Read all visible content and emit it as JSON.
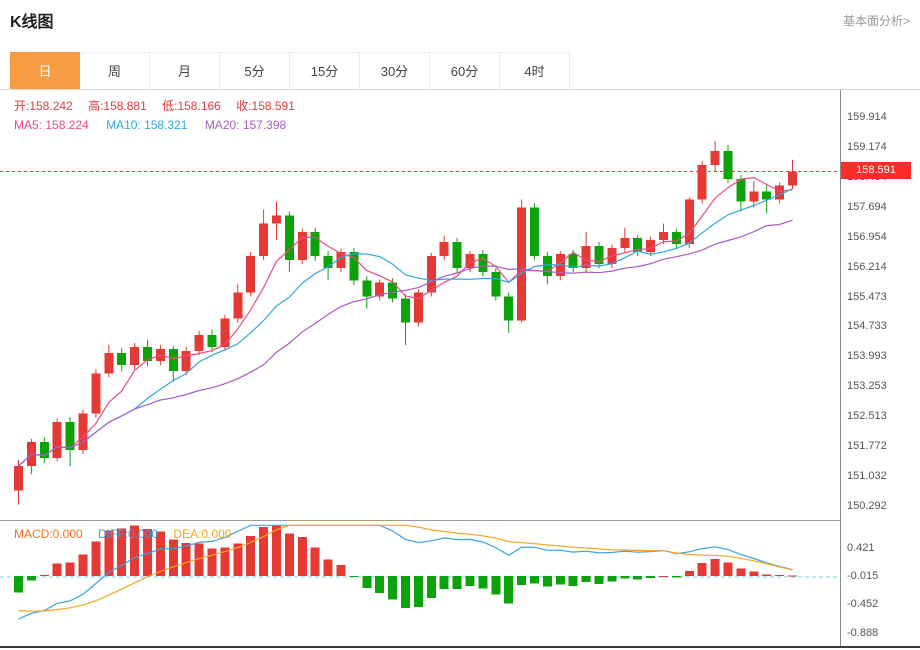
{
  "header": {
    "title": "K线图",
    "link": "基本面分析>"
  },
  "tabs": {
    "items": [
      "日",
      "周",
      "月",
      "5分",
      "15分",
      "30分",
      "60分",
      "4时"
    ],
    "selected": "日",
    "selected_index": 0
  },
  "info": {
    "open": "开:158.242",
    "high": "高:158.881",
    "low": "低:158.166",
    "close": "收:158.591",
    "ma5": "MA5: 158.224",
    "ma10": "MA10: 158.321",
    "ma20": "MA20: 157.398"
  },
  "macd_info": {
    "macd": "MACD:0.000",
    "diff": "DIFF:0.000",
    "dea": "DEA:0.000"
  },
  "price_marker": "158.591",
  "chart_data": {
    "type": "candlestick",
    "title": "K线图",
    "timeframe": "日",
    "indicator": "MACD",
    "latest": {
      "open": 158.242,
      "high": 158.881,
      "low": 158.166,
      "close": 158.591,
      "ma5": 158.224,
      "ma10": 158.321,
      "ma20": 157.398,
      "macd": 0.0,
      "diff": 0.0,
      "dea": 0.0
    },
    "current_price": 158.591,
    "y_range": [
      150.292,
      159.914
    ],
    "y_ticks": [
      159.914,
      159.174,
      158.434,
      157.694,
      156.954,
      156.214,
      155.473,
      154.733,
      153.993,
      153.253,
      152.513,
      151.772,
      151.032,
      150.292
    ],
    "macd_ticks": [
      0.421,
      -0.015,
      -0.452,
      -0.888
    ],
    "ma_periods": [
      5,
      10,
      20
    ],
    "ohlc": [
      [
        150.7,
        151.45,
        150.35,
        151.3
      ],
      [
        151.3,
        151.98,
        151.1,
        151.9
      ],
      [
        151.9,
        152.02,
        151.38,
        151.5
      ],
      [
        151.5,
        152.48,
        151.42,
        152.4
      ],
      [
        152.4,
        152.52,
        151.3,
        151.7
      ],
      [
        151.7,
        152.7,
        151.6,
        152.6
      ],
      [
        152.6,
        153.7,
        152.5,
        153.6
      ],
      [
        153.6,
        154.3,
        153.5,
        154.1
      ],
      [
        154.1,
        154.22,
        153.65,
        153.8
      ],
      [
        153.8,
        154.35,
        153.7,
        154.25
      ],
      [
        154.25,
        154.42,
        153.78,
        153.9
      ],
      [
        153.9,
        154.3,
        153.8,
        154.2
      ],
      [
        154.2,
        154.28,
        153.4,
        153.65
      ],
      [
        153.65,
        154.25,
        153.55,
        154.15
      ],
      [
        154.15,
        154.65,
        154.05,
        154.55
      ],
      [
        154.55,
        154.68,
        154.12,
        154.25
      ],
      [
        154.25,
        155.05,
        154.18,
        154.95
      ],
      [
        154.95,
        155.8,
        154.85,
        155.6
      ],
      [
        155.6,
        156.6,
        155.5,
        156.5
      ],
      [
        156.5,
        157.65,
        156.4,
        157.3
      ],
      [
        157.3,
        157.85,
        156.9,
        157.5
      ],
      [
        157.5,
        157.6,
        156.1,
        156.4
      ],
      [
        156.4,
        157.18,
        156.3,
        157.1
      ],
      [
        157.1,
        157.2,
        156.38,
        156.5
      ],
      [
        156.5,
        156.62,
        155.9,
        156.2
      ],
      [
        156.2,
        156.68,
        156.1,
        156.6
      ],
      [
        156.6,
        156.7,
        155.78,
        155.9
      ],
      [
        155.9,
        156.0,
        155.2,
        155.5
      ],
      [
        155.5,
        155.92,
        155.4,
        155.85
      ],
      [
        155.85,
        155.95,
        155.35,
        155.45
      ],
      [
        155.45,
        155.55,
        154.3,
        154.85
      ],
      [
        154.85,
        155.68,
        154.75,
        155.6
      ],
      [
        155.6,
        156.58,
        155.5,
        156.5
      ],
      [
        156.5,
        157.0,
        156.4,
        156.85
      ],
      [
        156.85,
        156.95,
        156.08,
        156.2
      ],
      [
        156.2,
        156.62,
        156.1,
        156.55
      ],
      [
        156.55,
        156.65,
        156.0,
        156.1
      ],
      [
        156.1,
        156.2,
        155.4,
        155.5
      ],
      [
        155.5,
        155.6,
        154.6,
        154.9
      ],
      [
        154.9,
        157.9,
        154.85,
        157.7
      ],
      [
        157.7,
        157.8,
        156.4,
        156.5
      ],
      [
        156.5,
        156.6,
        155.8,
        156.0
      ],
      [
        156.0,
        156.62,
        155.9,
        156.55
      ],
      [
        156.55,
        156.65,
        156.1,
        156.2
      ],
      [
        156.2,
        157.1,
        156.1,
        156.75
      ],
      [
        156.75,
        156.85,
        156.2,
        156.3
      ],
      [
        156.3,
        156.78,
        156.2,
        156.7
      ],
      [
        156.7,
        157.2,
        156.6,
        156.95
      ],
      [
        156.95,
        157.02,
        156.5,
        156.6
      ],
      [
        156.6,
        156.98,
        156.5,
        156.9
      ],
      [
        156.9,
        157.3,
        156.8,
        157.1
      ],
      [
        157.1,
        157.18,
        156.7,
        156.8
      ],
      [
        156.8,
        157.95,
        156.7,
        157.9
      ],
      [
        157.9,
        158.85,
        157.8,
        158.75
      ],
      [
        158.75,
        159.35,
        158.6,
        159.1
      ],
      [
        159.1,
        159.25,
        158.3,
        158.4
      ],
      [
        158.4,
        158.5,
        157.6,
        157.85
      ],
      [
        157.85,
        158.35,
        157.7,
        158.1
      ],
      [
        158.1,
        158.25,
        157.55,
        157.9
      ],
      [
        157.9,
        158.32,
        157.8,
        158.25
      ],
      [
        158.242,
        158.881,
        158.166,
        158.591
      ]
    ],
    "colors": {
      "up": "#e53935",
      "down": "#0ca30a",
      "ma": [
        "#f4497e",
        "#2fa7e0",
        "#a85bc8"
      ],
      "price_line": "#ff3333",
      "diff_line": "#3aa3e3",
      "dea_line": "#f5a623",
      "zero_line": "#6fd3e8",
      "accent_orange": "#f79b42"
    }
  }
}
